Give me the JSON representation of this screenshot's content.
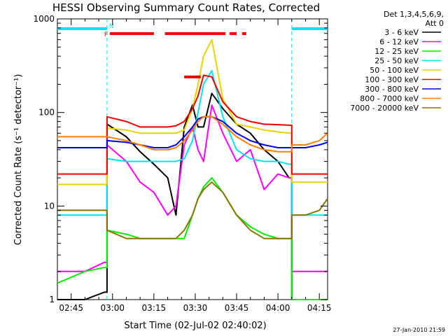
{
  "chart_data": {
    "type": "line",
    "title": "HESSI Observing Summary Count Rates, Corrected",
    "xlabel": "Start Time (02-Jul-02 02:40:02)",
    "ylabel": "Corrected Count Rate (s⁻¹ detector⁻¹)",
    "yscale": "log",
    "ylim": [
      1,
      1000
    ],
    "xlim_minutes": [
      0,
      98
    ],
    "x_tick_minutes": [
      5,
      20,
      35,
      50,
      65,
      80,
      95
    ],
    "x_tick_labels": [
      "02:45",
      "03:00",
      "03:15",
      "03:30",
      "03:45",
      "04:00",
      "04:15"
    ],
    "y_ticks": [
      1,
      10,
      100,
      1000
    ],
    "y_tick_labels": [
      "1",
      "10",
      "100",
      "1000"
    ],
    "legend_header": [
      "Det 1,3,4,5,6,9,",
      "Att 0"
    ],
    "legend_placement": "right",
    "night_boundaries_minutes": [
      18,
      85
    ],
    "flags": [
      {
        "label": "F",
        "color": "#ff0000",
        "segments": [
          [
            19,
            35
          ],
          [
            39,
            61
          ],
          [
            62.5,
            65
          ],
          [
            67,
            68.5
          ]
        ]
      },
      {
        "label": "N",
        "color": "#00e5ee",
        "segments": [
          [
            0,
            18
          ],
          [
            85,
            98
          ]
        ]
      }
    ],
    "attenuator_marker": {
      "x": [
        46,
        52
      ],
      "y": 240
    },
    "x": [
      0,
      10,
      17,
      18,
      25,
      30,
      35,
      40,
      43,
      46,
      49,
      51,
      53,
      56,
      60,
      65,
      70,
      75,
      80,
      84,
      85,
      90,
      95,
      98
    ],
    "series": [
      {
        "name": "3 - 6 keV",
        "color": "#000000",
        "values": [
          1,
          1,
          1.2,
          75,
          55,
          38,
          28,
          20,
          8,
          70,
          120,
          70,
          70,
          160,
          110,
          75,
          60,
          40,
          30,
          20,
          1,
          1,
          1,
          1
        ]
      },
      {
        "name": "6 - 12 keV",
        "color": "#ff00ff",
        "values": [
          2,
          2,
          2.5,
          45,
          30,
          18,
          14,
          8,
          10,
          45,
          70,
          40,
          30,
          120,
          60,
          30,
          40,
          15,
          22,
          20,
          2,
          2,
          2,
          2
        ]
      },
      {
        "name": "12 - 25 keV",
        "color": "#00ee00",
        "values": [
          1.5,
          2,
          2.2,
          5.5,
          5,
          4.5,
          4.5,
          4.5,
          4.5,
          4.5,
          8,
          12,
          16,
          20,
          14,
          8,
          6,
          5,
          4.5,
          4.5,
          1,
          1,
          1,
          1
        ]
      },
      {
        "name": "25 - 50 keV",
        "color": "#00e5ee",
        "values": [
          8,
          8,
          8,
          32,
          30,
          30,
          30,
          30,
          30,
          32,
          50,
          100,
          200,
          280,
          90,
          40,
          32,
          30,
          30,
          28,
          8,
          8,
          8,
          8
        ]
      },
      {
        "name": "50 - 100 keV",
        "color": "#e8d300",
        "values": [
          17,
          17,
          17,
          68,
          65,
          60,
          60,
          60,
          60,
          65,
          110,
          200,
          400,
          600,
          140,
          75,
          70,
          65,
          62,
          60,
          18,
          18,
          18,
          18
        ]
      },
      {
        "name": "100 - 300 keV",
        "color": "#ee0000",
        "values": [
          22,
          22,
          22,
          90,
          80,
          70,
          70,
          70,
          72,
          80,
          110,
          150,
          250,
          240,
          130,
          90,
          80,
          75,
          74,
          73,
          22,
          22,
          22,
          22
        ]
      },
      {
        "name": "300 - 800 keV",
        "color": "#0000ee",
        "values": [
          42,
          42,
          42,
          50,
          48,
          45,
          42,
          42,
          45,
          55,
          70,
          85,
          90,
          90,
          80,
          60,
          50,
          45,
          42,
          42,
          42,
          42,
          45,
          48
        ]
      },
      {
        "name": "800 - 7000 keV",
        "color": "#ff8000",
        "values": [
          55,
          55,
          55,
          55,
          50,
          45,
          40,
          40,
          42,
          50,
          65,
          80,
          90,
          90,
          75,
          55,
          45,
          40,
          38,
          38,
          45,
          45,
          50,
          60
        ]
      },
      {
        "name": "7000 - 20000 keV",
        "color": "#8b7500",
        "values": [
          9,
          9,
          9,
          5.5,
          4.5,
          4.5,
          4.5,
          4.5,
          4.5,
          5.5,
          8,
          12,
          15,
          18,
          14,
          8,
          5.5,
          4.5,
          4.5,
          4.5,
          8,
          8,
          9,
          12
        ]
      }
    ]
  },
  "stamp": "27-Jan-2010 21:59"
}
